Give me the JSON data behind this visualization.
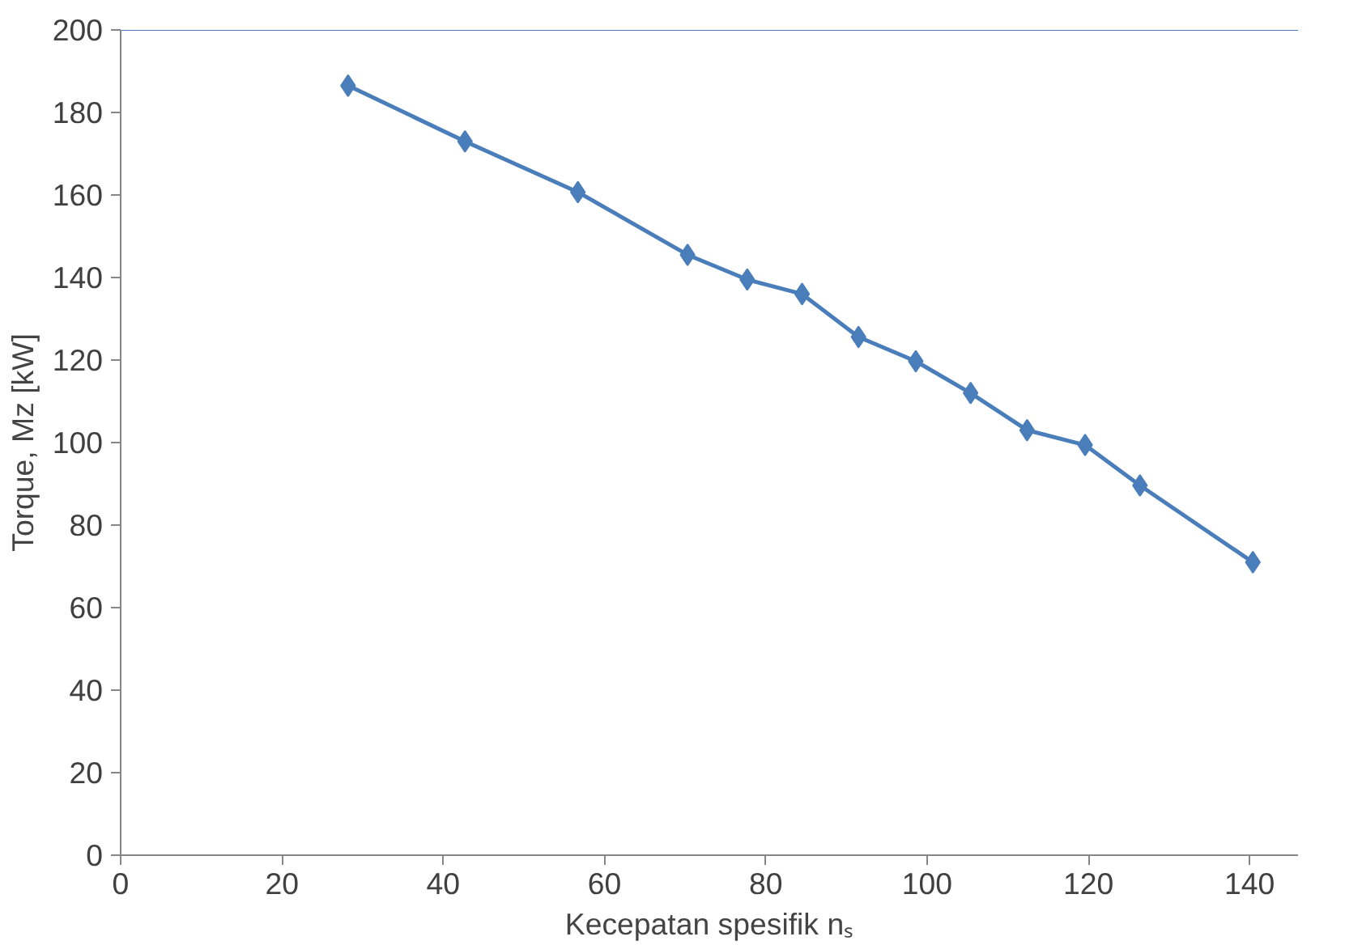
{
  "chart_data": {
    "type": "line",
    "xlabel": "Kecepatan spesifik nₛ",
    "ylabel": "Torque, Mz [kW]",
    "x": [
      28.2,
      42.7,
      56.7,
      70.3,
      77.7,
      84.5,
      91.5,
      98.6,
      105.4,
      112.4,
      119.6,
      126.4,
      140.4
    ],
    "series": [
      {
        "color": "#4a7ebb",
        "values": [
          186.5,
          173,
          160.7,
          145.5,
          139.5,
          136,
          125.6,
          119.7,
          112,
          103,
          99.4,
          89.6,
          71
        ]
      }
    ],
    "xlim": [
      0,
      146
    ],
    "ylim": [
      0,
      200
    ],
    "xticks": [
      0,
      20,
      40,
      60,
      80,
      100,
      120,
      140
    ],
    "yticks": [
      0,
      20,
      40,
      60,
      80,
      100,
      120,
      140,
      160,
      180,
      200
    ],
    "ref_lines": [
      {
        "axis": "y",
        "value": 200,
        "color": "#4a7ebb"
      }
    ],
    "grid": false,
    "marker": "diamond",
    "line_style": "solid"
  }
}
